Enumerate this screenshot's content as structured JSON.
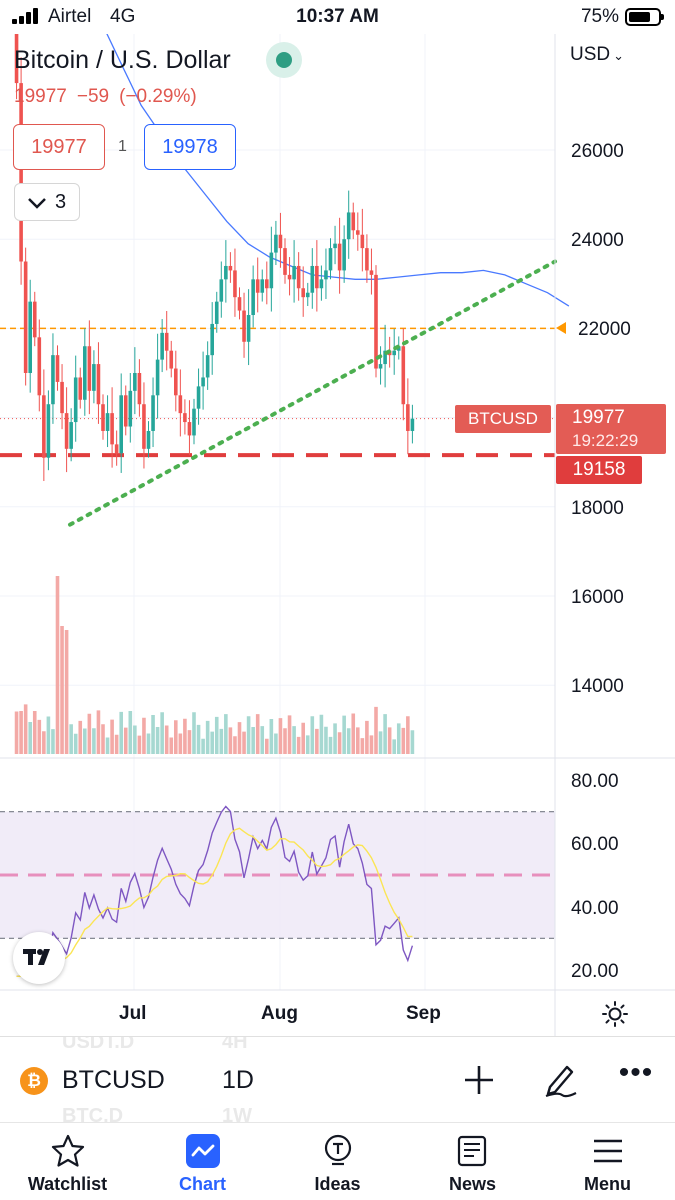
{
  "status_bar": {
    "carrier": "Airtel",
    "network": "4G",
    "time": "10:37 AM",
    "battery": "75%",
    "battery_level": 0.75
  },
  "header": {
    "title": "Bitcoin / U.S. Dollar",
    "last_price": "19977",
    "change": "−59",
    "change_pct": "(−0.29%)",
    "bid": "19977",
    "spread": "1",
    "ask": "19978",
    "indicator_count": "3"
  },
  "price_axis": {
    "currency": "USD",
    "ticks": [
      "26000",
      "24000",
      "22000",
      "18000",
      "16000",
      "14000"
    ]
  },
  "markers": {
    "ticker": "BTCUSD",
    "last_price": "19977",
    "countdown": "19:22:29",
    "support_price": "19158",
    "alert_price": 22000
  },
  "rsi_axis": {
    "ticks": [
      "80.00",
      "60.00",
      "40.00",
      "20.00"
    ]
  },
  "time_axis": {
    "labels": [
      "Jul",
      "Aug",
      "Sep"
    ]
  },
  "symbol_bar": {
    "symbol": "BTCUSD",
    "interval": "1D",
    "ghost_above_symbol": "USDT.D",
    "ghost_above_interval": "4H",
    "ghost_below_symbol": "BTC.D",
    "ghost_below_interval": "1W"
  },
  "tabs": [
    {
      "label": "Watchlist",
      "icon": "star-icon",
      "active": false
    },
    {
      "label": "Chart",
      "icon": "chart-icon",
      "active": true
    },
    {
      "label": "Ideas",
      "icon": "ideas-icon",
      "active": false
    },
    {
      "label": "News",
      "icon": "news-icon",
      "active": false
    },
    {
      "label": "Menu",
      "icon": "menu-icon",
      "active": false
    }
  ],
  "colors": {
    "up": "#26a69a",
    "down": "#ef5350",
    "ma": "#2962ff",
    "trendline": "#4caf50",
    "alert_line": "#ff9800",
    "support_line": "#e03d3d",
    "rsi": "#7e57c2",
    "rsi_ma": "#fbe554",
    "rsi_band": "#7e57c2"
  },
  "chart_data": {
    "type": "candlestick",
    "title": "Bitcoin / U.S. Dollar",
    "interval": "1D",
    "x_labels": [
      "Jul",
      "Aug",
      "Sep"
    ],
    "ylim": [
      12500,
      28000
    ],
    "closes_approx": [
      29500,
      27500,
      23500,
      21000,
      22600,
      21800,
      20500,
      19100,
      20300,
      21400,
      20800,
      20100,
      19300,
      19900,
      20900,
      20400,
      21600,
      20600,
      21200,
      20300,
      19700,
      20100,
      19400,
      19200,
      20500,
      19800,
      20600,
      21000,
      20300,
      19300,
      19700,
      20500,
      21300,
      21900,
      21500,
      21100,
      20500,
      20100,
      19900,
      19600,
      20200,
      20700,
      20900,
      21400,
      22100,
      22600,
      23100,
      23400,
      23300,
      22700,
      22400,
      21700,
      22300,
      23100,
      22800,
      23100,
      22900,
      23700,
      24100,
      23800,
      23200,
      23100,
      23400,
      22900,
      22700,
      22800,
      23400,
      22900,
      23100,
      23300,
      23800,
      23900,
      23300,
      24000,
      24600,
      24200,
      24100,
      23800,
      23300,
      23200,
      21100,
      21200,
      21500,
      21400,
      21500,
      21600,
      20300,
      19700,
      19977
    ],
    "sma_approx": {
      "start_index": 19,
      "values": [
        29000,
        28000,
        27000,
        26300,
        25600,
        25000,
        24400,
        23900,
        23600,
        23400,
        23200,
        23150,
        23100,
        23100,
        23150,
        23200,
        23250,
        23250,
        23300,
        23200,
        23000,
        22800,
        22500
      ]
    },
    "trendline": {
      "from": {
        "x_index": 13,
        "price": 17600
      },
      "to": {
        "x_index": 122,
        "price": 23500
      }
    },
    "horizontal_levels": [
      {
        "price": 22000,
        "style": "dashed",
        "color": "#ff9800"
      },
      {
        "price": 19158,
        "style": "dashed",
        "color": "#e03d3d"
      }
    ],
    "rsi": {
      "ylim": [
        15,
        85
      ],
      "upper": 70,
      "middle": 50,
      "lower": 30,
      "ticks": [
        80,
        60,
        40,
        20
      ]
    }
  }
}
